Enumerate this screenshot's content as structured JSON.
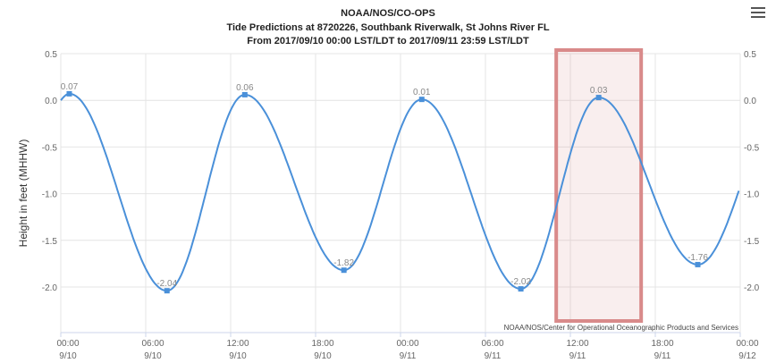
{
  "chart_data": {
    "type": "line",
    "title": "NOAA/NOS/CO-OPS",
    "subtitle": "Tide Predictions at 8720226, Southbank Riverwalk, St Johns River FL",
    "subtitle2": "From 2017/09/10 00:00 LST/LDT to 2017/09/11 23:59 LST/LDT",
    "ylabel": "Height in feet (MHHW)",
    "credit": "NOAA/NOS/Center for Operational Oceanographic Products and Services",
    "ylim": [
      -2.5,
      0.5
    ],
    "yticks": [
      "0.5",
      "0.0",
      "-0.5",
      "-1.0",
      "-1.5",
      "-2.0"
    ],
    "ytick_values": [
      0.5,
      0.0,
      -0.5,
      -1.0,
      -1.5,
      -2.0
    ],
    "xlim_hours": [
      0,
      48
    ],
    "xticks": [
      {
        "hour": 0,
        "time": "00:00",
        "date": "9/10"
      },
      {
        "hour": 6,
        "time": "06:00",
        "date": "9/10"
      },
      {
        "hour": 12,
        "time": "12:00",
        "date": "9/10"
      },
      {
        "hour": 18,
        "time": "18:00",
        "date": "9/10"
      },
      {
        "hour": 24,
        "time": "00:00",
        "date": "9/11"
      },
      {
        "hour": 30,
        "time": "06:00",
        "date": "9/11"
      },
      {
        "hour": 36,
        "time": "12:00",
        "date": "9/11"
      },
      {
        "hour": 42,
        "time": "18:00",
        "date": "9/11"
      },
      {
        "hour": 48,
        "time": "00:00",
        "date": "9/12"
      }
    ],
    "points": [
      {
        "hour": 0.6,
        "value": 0.07,
        "label": "0.07"
      },
      {
        "hour": 7.5,
        "value": -2.04,
        "label": "-2.04"
      },
      {
        "hour": 13.0,
        "value": 0.06,
        "label": "0.06"
      },
      {
        "hour": 20.0,
        "value": -1.82,
        "label": "-1.82"
      },
      {
        "hour": 25.5,
        "value": 0.01,
        "label": "0.01"
      },
      {
        "hour": 32.5,
        "value": -2.02,
        "label": "-2.02"
      },
      {
        "hour": 38.0,
        "value": 0.03,
        "label": "0.03"
      },
      {
        "hour": 45.0,
        "value": -1.76,
        "label": "-1.76"
      }
    ],
    "start_value": 0.0,
    "end_value": -0.88,
    "grid": true,
    "line_color": "#4a90d9",
    "highlight_color": "#d98a8a",
    "highlight_range_hours": [
      35,
      41
    ]
  },
  "menu_icon": "hamburger-icon"
}
